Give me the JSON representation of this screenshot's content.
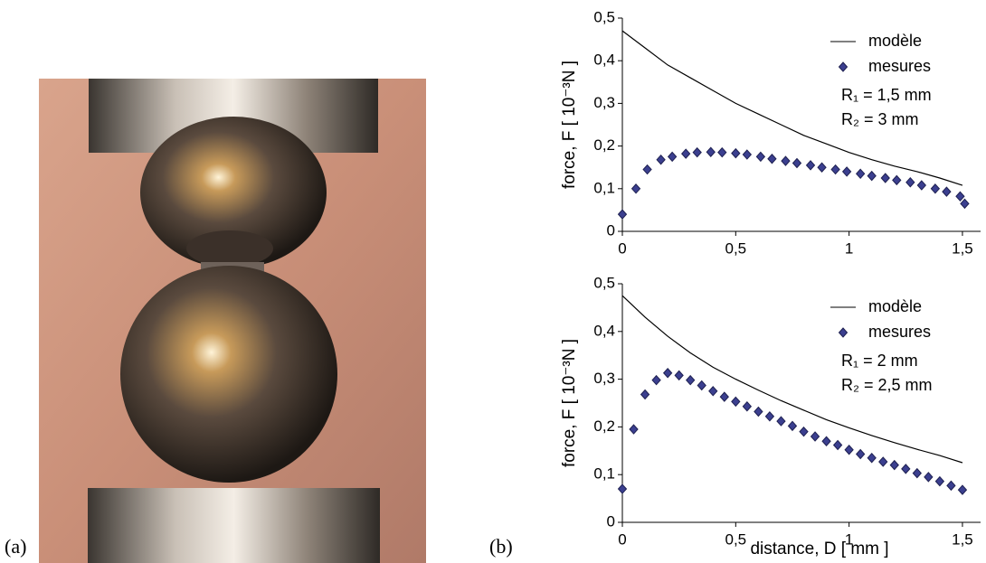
{
  "panel_labels": [
    "(a)",
    "(b)"
  ],
  "chart_data": [
    {
      "type": "line",
      "ylabel": "force,  F  [ 10⁻³N ]",
      "xlim": [
        0,
        1.58
      ],
      "ylim": [
        0,
        0.5
      ],
      "xticks": [
        0,
        {
          "value": 0.5,
          "label": "0,5"
        },
        1,
        {
          "value": 1.5,
          "label": "1,5"
        }
      ],
      "yticks": [
        0,
        {
          "value": 0.1,
          "label": "0,1"
        },
        {
          "value": 0.2,
          "label": "0,2"
        },
        {
          "value": 0.3,
          "label": "0,3"
        },
        {
          "value": 0.4,
          "label": "0,4"
        },
        {
          "value": 0.5,
          "label": "0,5"
        }
      ],
      "annotations": [
        "R₁ = 1,5 mm",
        "R₂ = 3 mm"
      ],
      "series": [
        {
          "name": "modèle",
          "type": "line",
          "color": "#000000",
          "x": [
            0,
            0.1,
            0.2,
            0.3,
            0.4,
            0.5,
            0.6,
            0.7,
            0.8,
            0.9,
            1.0,
            1.1,
            1.2,
            1.3,
            1.4,
            1.5
          ],
          "values": [
            0.47,
            0.43,
            0.39,
            0.36,
            0.33,
            0.3,
            0.275,
            0.25,
            0.225,
            0.205,
            0.185,
            0.168,
            0.153,
            0.14,
            0.125,
            0.108
          ]
        },
        {
          "name": "mesures",
          "type": "scatter",
          "color": "#3b3f8f",
          "x": [
            0,
            0.06,
            0.11,
            0.17,
            0.22,
            0.28,
            0.33,
            0.39,
            0.44,
            0.5,
            0.55,
            0.61,
            0.66,
            0.72,
            0.77,
            0.83,
            0.88,
            0.94,
            0.99,
            1.05,
            1.1,
            1.16,
            1.21,
            1.27,
            1.32,
            1.38,
            1.43,
            1.49,
            1.51
          ],
          "values": [
            0.04,
            0.1,
            0.145,
            0.168,
            0.175,
            0.182,
            0.185,
            0.186,
            0.185,
            0.183,
            0.18,
            0.175,
            0.17,
            0.165,
            0.16,
            0.155,
            0.15,
            0.145,
            0.14,
            0.135,
            0.13,
            0.125,
            0.12,
            0.115,
            0.108,
            0.1,
            0.093,
            0.082,
            0.065
          ]
        }
      ]
    },
    {
      "type": "line",
      "ylabel": "force,  F  [ 10⁻³N ]",
      "xlabel": "distance,  D  [ mm ]",
      "xlim": [
        0,
        1.58
      ],
      "ylim": [
        0,
        0.5
      ],
      "xticks": [
        0,
        {
          "value": 0.5,
          "label": "0,5"
        },
        1,
        {
          "value": 1.5,
          "label": "1,5"
        }
      ],
      "yticks": [
        0,
        {
          "value": 0.1,
          "label": "0,1"
        },
        {
          "value": 0.2,
          "label": "0,2"
        },
        {
          "value": 0.3,
          "label": "0,3"
        },
        {
          "value": 0.4,
          "label": "0,4"
        },
        {
          "value": 0.5,
          "label": "0,5"
        }
      ],
      "annotations": [
        "R₁ = 2 mm",
        "R₂ = 2,5 mm"
      ],
      "series": [
        {
          "name": "modèle",
          "type": "line",
          "color": "#000000",
          "x": [
            0,
            0.1,
            0.2,
            0.3,
            0.4,
            0.5,
            0.6,
            0.7,
            0.8,
            0.9,
            1.0,
            1.1,
            1.2,
            1.3,
            1.4,
            1.5
          ],
          "values": [
            0.475,
            0.43,
            0.39,
            0.355,
            0.325,
            0.3,
            0.277,
            0.255,
            0.235,
            0.215,
            0.198,
            0.182,
            0.167,
            0.153,
            0.14,
            0.125
          ]
        },
        {
          "name": "mesures",
          "type": "scatter",
          "color": "#3b3f8f",
          "x": [
            0,
            0.05,
            0.1,
            0.15,
            0.2,
            0.25,
            0.3,
            0.35,
            0.4,
            0.45,
            0.5,
            0.55,
            0.6,
            0.65,
            0.7,
            0.75,
            0.8,
            0.85,
            0.9,
            0.95,
            1.0,
            1.05,
            1.1,
            1.15,
            1.2,
            1.25,
            1.3,
            1.35,
            1.4,
            1.45,
            1.5
          ],
          "values": [
            0.07,
            0.195,
            0.268,
            0.298,
            0.313,
            0.308,
            0.298,
            0.287,
            0.275,
            0.263,
            0.253,
            0.243,
            0.232,
            0.222,
            0.212,
            0.202,
            0.19,
            0.18,
            0.17,
            0.162,
            0.152,
            0.143,
            0.135,
            0.127,
            0.12,
            0.112,
            0.103,
            0.095,
            0.086,
            0.077,
            0.068
          ]
        }
      ]
    }
  ]
}
